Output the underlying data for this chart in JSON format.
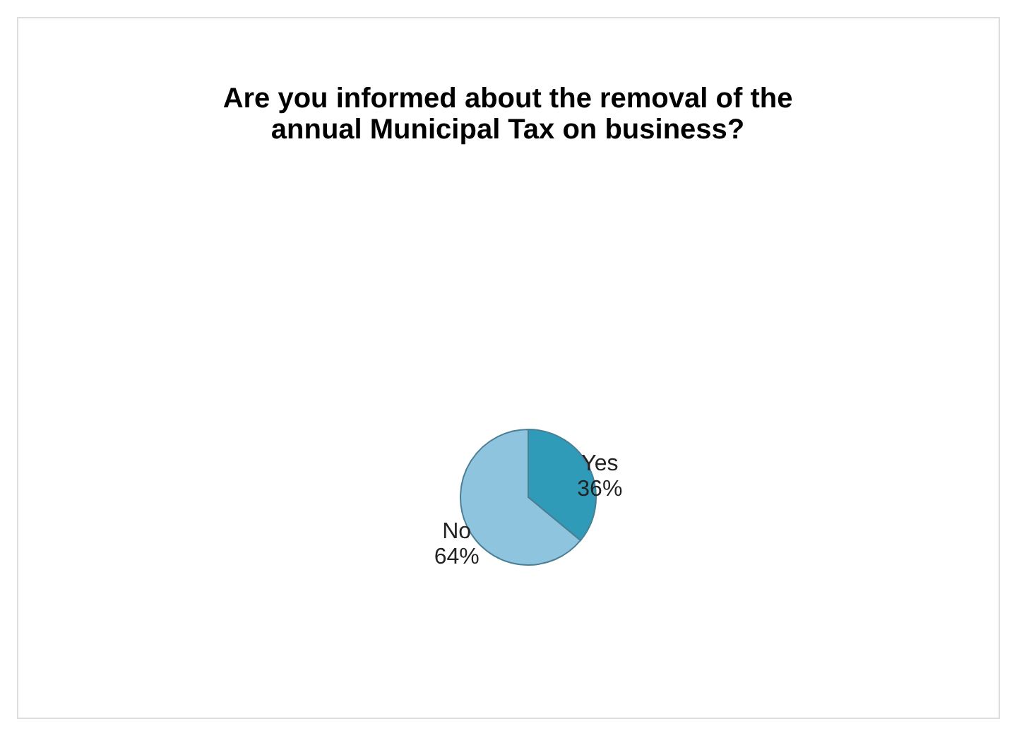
{
  "chart_data": {
    "type": "pie",
    "title": "Are you informed about the removal of the annual Municipal Tax on business?",
    "categories": [
      "Yes",
      "No"
    ],
    "values": [
      36,
      64
    ],
    "colors": [
      "#2f9bb8",
      "#8ec4dd"
    ],
    "value_labels": [
      "36%",
      "64%"
    ],
    "legend": false
  }
}
